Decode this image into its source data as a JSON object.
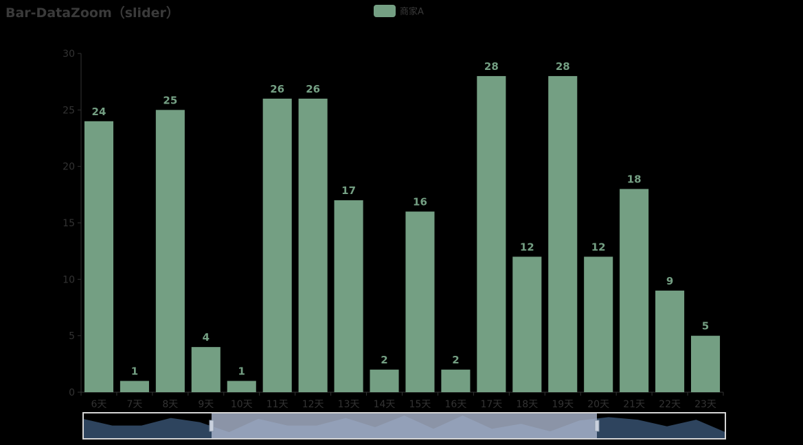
{
  "chart_data": {
    "type": "bar",
    "title": "Bar-DataZoom（slider）",
    "categories": [
      "6天",
      "7天",
      "8天",
      "9天",
      "10天",
      "11天",
      "12天",
      "13天",
      "14天",
      "15天",
      "16天",
      "17天",
      "18天",
      "19天",
      "20天",
      "21天",
      "22天",
      "23天"
    ],
    "series": [
      {
        "name": "商家A",
        "values": [
          24,
          1,
          25,
          4,
          1,
          26,
          26,
          17,
          2,
          16,
          2,
          28,
          12,
          28,
          12,
          18,
          9,
          5
        ]
      }
    ],
    "full_series_overview": [
      24,
      16,
      16,
      25,
      20,
      8,
      24,
      16,
      16,
      25,
      14,
      28,
      12,
      28,
      12,
      18,
      9,
      22,
      26,
      23,
      15,
      23,
      8
    ],
    "ylim": [
      0,
      30
    ],
    "yticks": [
      0,
      5,
      10,
      15,
      20,
      25,
      30
    ],
    "xlabel": "",
    "ylabel": "",
    "legend_position": "top-center",
    "datazoom": {
      "type": "slider",
      "start_percent": 20,
      "end_percent": 80
    },
    "colors": {
      "bar": "#749f83",
      "label": "#749f83",
      "axis": "#333333",
      "tick_text": "#333333",
      "slider_bg": "#1e3550",
      "slider_fill": "#2e445e",
      "slider_window": "#a9b5cc",
      "slider_border": "#d6d6d6"
    }
  }
}
